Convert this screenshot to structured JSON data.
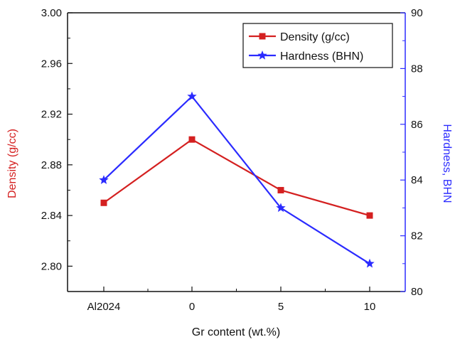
{
  "chart_data": {
    "type": "line",
    "categories": [
      "Al2024",
      "0",
      "5",
      "10"
    ],
    "xlabel": "Gr content (wt.%)",
    "y_left": {
      "label": "Density (g/cc)",
      "range": [
        2.78,
        3.0
      ],
      "ticks": [
        2.8,
        2.84,
        2.88,
        2.92,
        2.96,
        3.0
      ],
      "tick_labels": [
        "2.80",
        "2.84",
        "2.88",
        "2.92",
        "2.96",
        "3.00"
      ],
      "color": "#d42020"
    },
    "y_right": {
      "label": "Hardness, BHN",
      "range": [
        80,
        90
      ],
      "ticks": [
        80,
        82,
        84,
        86,
        88,
        90
      ],
      "tick_labels": [
        "80",
        "82",
        "84",
        "86",
        "88",
        "90"
      ],
      "color": "#2b2bff"
    },
    "series": [
      {
        "name": "Density (g/cc)",
        "axis": "left",
        "marker": "square",
        "color": "#d42020",
        "values": [
          2.85,
          2.9,
          2.86,
          2.84
        ]
      },
      {
        "name": "Hardness (BHN)",
        "axis": "right",
        "marker": "star",
        "color": "#2b2bff",
        "values": [
          84,
          87,
          83,
          81
        ]
      }
    ],
    "legend": {
      "position": "top-right"
    },
    "grid": false
  }
}
